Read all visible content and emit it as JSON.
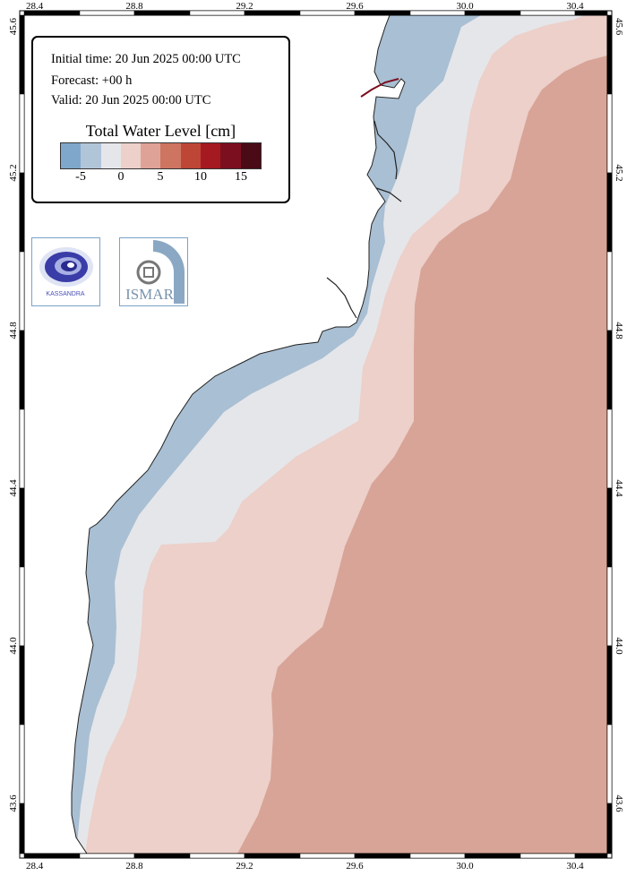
{
  "info": {
    "initial_time": "Initial time: 20 Jun 2025 00:00 UTC",
    "forecast": "Forecast: +00 h",
    "valid": "Valid: 20 Jun 2025 00:00 UTC"
  },
  "legend": {
    "title": "Total Water Level [cm]",
    "colors": [
      "#7ea7cb",
      "#b1c5d8",
      "#e5e6ea",
      "#ecd0c9",
      "#dfa297",
      "#cd7561",
      "#be4637",
      "#a51a20",
      "#7b0f1f",
      "#4a0a16"
    ],
    "ticks": [
      "-5",
      "0",
      "5",
      "10",
      "15"
    ]
  },
  "axes": {
    "lon_ticks": [
      "28.4",
      "28.8",
      "29.2",
      "29.6",
      "30.0",
      "30.4"
    ],
    "lat_ticks": [
      "45.6",
      "45.2",
      "44.8",
      "44.4",
      "44.0",
      "43.6"
    ]
  },
  "logos": {
    "kassandra_text": "KASSANDRA",
    "ismar_text": "ISMAR"
  },
  "zone_colors": {
    "land": "#ffffff",
    "minus5": "#a9bfd3",
    "zero": "#e5e6ea",
    "plus2": "#ecd0c9",
    "plus5": "#d8a497"
  }
}
